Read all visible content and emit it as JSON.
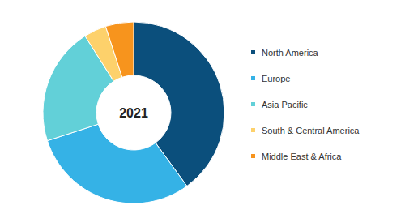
{
  "chart_data": {
    "type": "donut",
    "title": "2021",
    "categories": [
      "North America",
      "Europe",
      "Asia Pacific",
      "South & Central America",
      "Middle East & Africa"
    ],
    "values": [
      40,
      30,
      21,
      4,
      5
    ],
    "colors": [
      "#0b4f7c",
      "#35b2e6",
      "#62d0d8",
      "#fdd16b",
      "#f7941d"
    ],
    "legend": "right"
  }
}
